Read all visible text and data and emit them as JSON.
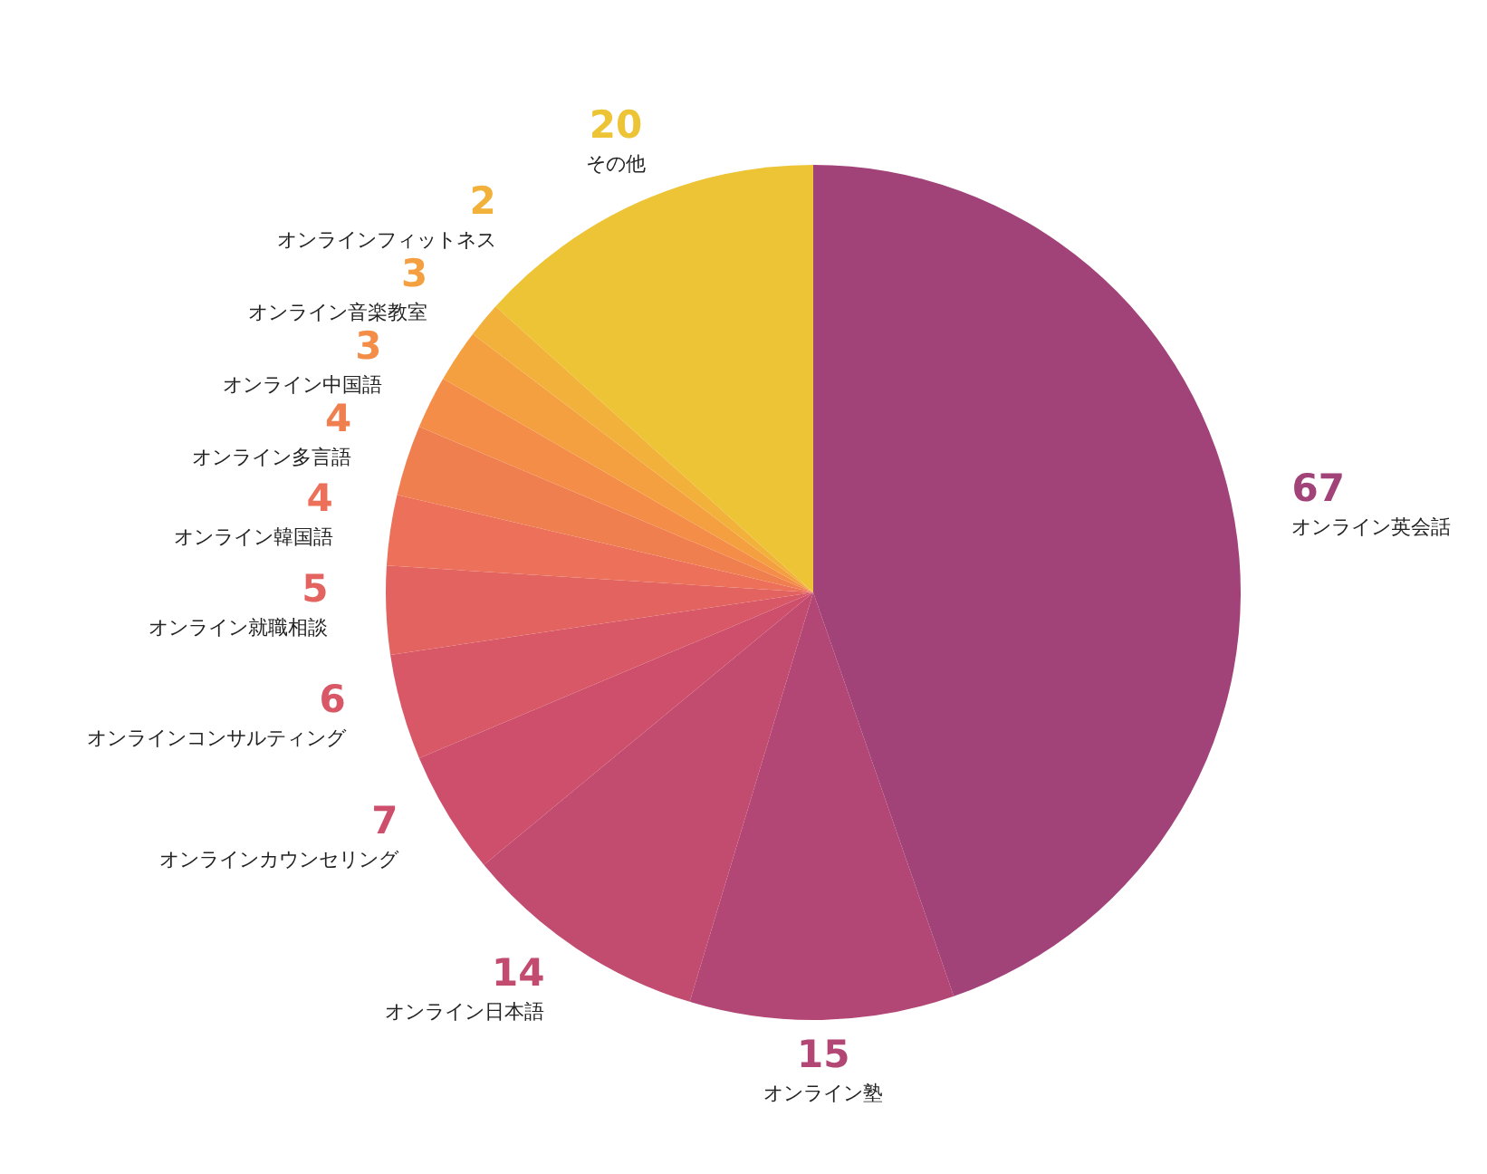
{
  "chart_data": {
    "type": "pie",
    "categories": [
      "オンライン英会話",
      "オンライン塾",
      "オンライン日本語",
      "オンラインカウンセリング",
      "オンラインコンサルティング",
      "オンライン就職相談",
      "オンライン韓国語",
      "オンライン多言語",
      "オンライン中国語",
      "オンライン音楽教室",
      "オンラインフィットネス",
      "その他"
    ],
    "values": [
      67,
      15,
      14,
      7,
      6,
      5,
      4,
      4,
      3,
      3,
      2,
      20
    ],
    "colors": [
      "#a14278",
      "#b24674",
      "#c24b70",
      "#cd4f6b",
      "#d85868",
      "#e2635f",
      "#ec705a",
      "#f07f50",
      "#f38d48",
      "#f5a040",
      "#f2b13a",
      "#ecc435"
    ],
    "data_labels": true
  }
}
